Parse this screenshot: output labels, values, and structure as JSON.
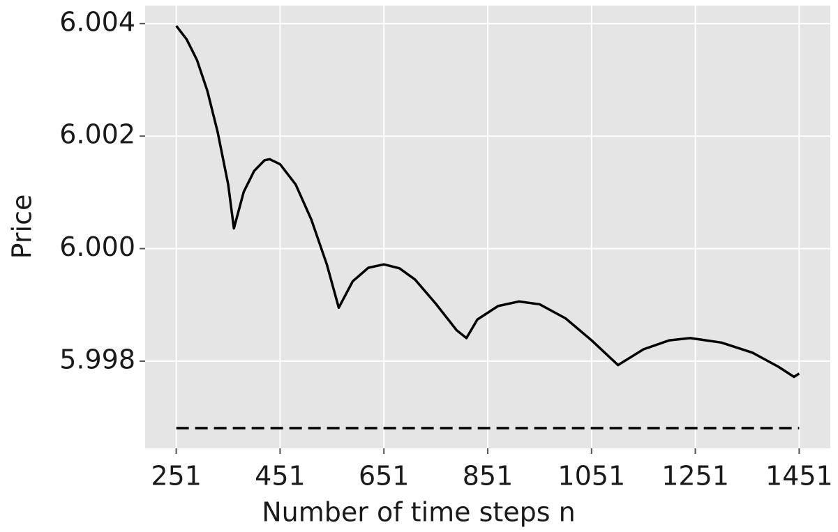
{
  "chart_data": {
    "type": "line",
    "xlabel": "Number of time steps n",
    "ylabel": "Price",
    "xlim": [
      191,
      1511
    ],
    "ylim": [
      5.99645,
      6.00432
    ],
    "xticks": [
      251,
      451,
      651,
      851,
      1051,
      1251,
      1451
    ],
    "yticks": [
      5.998,
      {
        "value": 6,
        "label": "6.000"
      },
      6.002,
      6.004
    ],
    "grid": true,
    "series": [
      {
        "color": "#000000",
        "dashed": false,
        "x": [
          251,
          271,
          291,
          311,
          331,
          351,
          362,
          381,
          401,
          421,
          431,
          451,
          481,
          511,
          541,
          564,
          591,
          621,
          651,
          681,
          711,
          751,
          791,
          810,
          831,
          871,
          911,
          951,
          1001,
          1051,
          1102,
          1151,
          1201,
          1241,
          1301,
          1361,
          1411,
          1441,
          1451
        ],
        "values": [
          6.00396,
          6.00372,
          6.00335,
          6.0028,
          6.00206,
          6.00114,
          6.00036,
          6.00101,
          6.00138,
          6.00157,
          6.00159,
          6.0015,
          6.00114,
          6.00052,
          5.99972,
          5.99895,
          5.99942,
          5.99966,
          5.99972,
          5.99965,
          5.99945,
          5.99902,
          5.99855,
          5.99841,
          5.99874,
          5.99898,
          5.99906,
          5.99901,
          5.99876,
          5.99837,
          5.99793,
          5.99821,
          5.99837,
          5.99841,
          5.99833,
          5.99815,
          5.9979,
          5.99772,
          5.99778
        ]
      },
      {
        "color": "#000000",
        "dashed": true,
        "x": [
          251,
          1451
        ],
        "values": [
          5.99681,
          5.99681
        ]
      }
    ]
  }
}
